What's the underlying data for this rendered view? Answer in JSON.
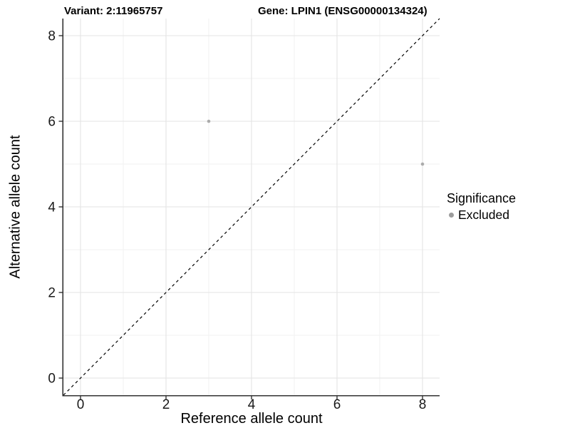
{
  "figure": {
    "titles": {
      "variant": "Variant: 2:11965757",
      "gene": "Gene: LPIN1 (ENSG00000134324)"
    }
  },
  "axes": {
    "x": {
      "title": "Reference allele count"
    },
    "y": {
      "title": "Alternative allele count"
    }
  },
  "legend": {
    "title": "Significance",
    "items": [
      {
        "label": "Excluded",
        "marker": "circle",
        "color": "#9c9c9c"
      }
    ]
  },
  "chart_data": {
    "type": "scatter",
    "title": "Variant: 2:11965757   Gene: LPIN1 (ENSG00000134324)",
    "xlabel": "Reference allele count",
    "ylabel": "Alternative allele count",
    "xlim": [
      -0.4,
      8.4
    ],
    "ylim": [
      -0.4,
      8.4
    ],
    "x_ticks": [
      0,
      2,
      4,
      6,
      8
    ],
    "y_ticks": [
      0,
      2,
      4,
      6,
      8
    ],
    "x_minor": [
      1,
      3,
      5,
      7
    ],
    "y_minor": [
      1,
      3,
      5,
      7
    ],
    "grid": "on",
    "legend_position": "right",
    "series": [
      {
        "name": "Excluded",
        "color": "#ababab",
        "marker_radius": 2.3,
        "points": [
          [
            3,
            6
          ],
          [
            8,
            5
          ]
        ]
      }
    ],
    "reference_line": {
      "kind": "identity",
      "slope": 1,
      "intercept": 0,
      "style": "dashed",
      "color": "#000000"
    }
  },
  "colors": {
    "background": "#ffffff",
    "grid_major": "#e3e3e3",
    "grid_minor": "#f1f1f1",
    "axis_line": "#333333",
    "tick_text": "#1a1a1a",
    "legend_dot": "#9c9c9c"
  }
}
